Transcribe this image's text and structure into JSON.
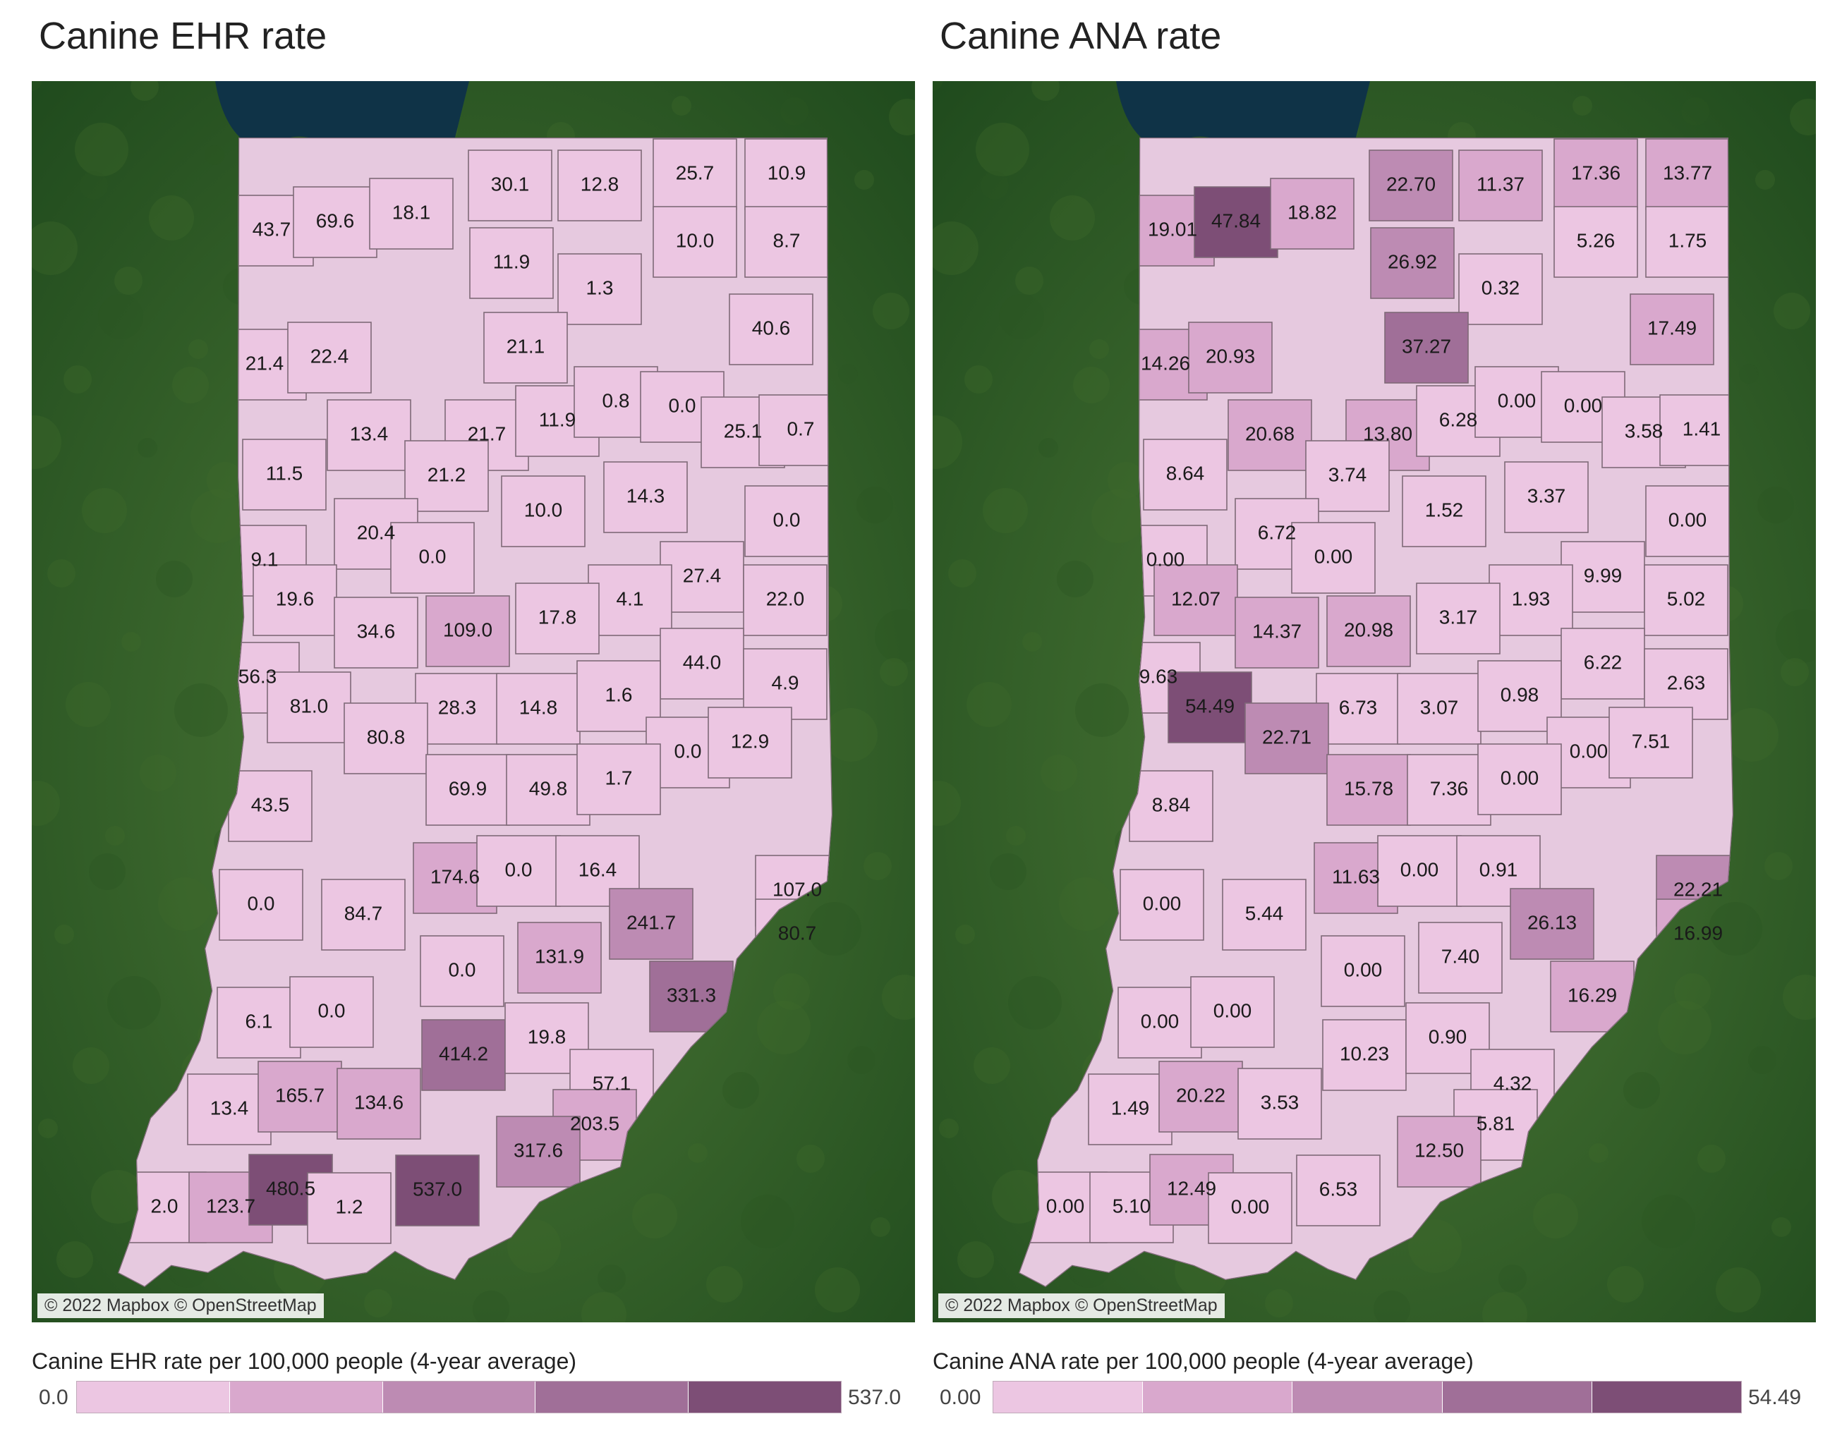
{
  "colors": {
    "scale": [
      "#ecc6e2",
      "#d9a8cd",
      "#bd8bb3",
      "#a06f98",
      "#7d4e76"
    ],
    "county_fill_default": "#e6c9df",
    "county_stroke": "#7f6a78",
    "land_dark": "#1f4a1d",
    "land_light": "#4e7a37",
    "lake": "#0f3347"
  },
  "panels": [
    {
      "title": "Canine EHR rate",
      "attribution": "© 2022 Mapbox © OpenStreetMap",
      "legend": {
        "title": "Canine EHR rate per 100,000 people (4-year average)",
        "min": "0.0",
        "max": "537.0",
        "min_value": 0,
        "max_value": 537
      },
      "labels": [
        "43.7",
        "69.6",
        "18.1",
        "30.1",
        "12.8",
        "25.7",
        "10.9",
        "11.9",
        "10.0",
        "8.7",
        "1.3",
        "21.4",
        "22.4",
        "21.1",
        "40.6",
        "13.4",
        "21.7",
        "11.9",
        "0.8",
        "0.0",
        "25.1",
        "0.7",
        "11.5",
        "21.2",
        "10.0",
        "14.3",
        "0.0",
        "20.4",
        "9.1",
        "0.0",
        "27.4",
        "19.6",
        "4.1",
        "22.0",
        "34.6",
        "109.0",
        "17.8",
        "44.0",
        "56.3",
        "81.0",
        "28.3",
        "14.8",
        "1.6",
        "4.9",
        "80.8",
        "0.0",
        "12.9",
        "69.9",
        "49.8",
        "1.7",
        "43.5",
        "174.6",
        "0.0",
        "16.4",
        "107.0",
        "0.0",
        "84.7",
        "241.7",
        "80.7",
        "131.9",
        "0.0",
        "331.3",
        "6.1",
        "0.0",
        "414.2",
        "19.8",
        "57.1",
        "13.4",
        "165.7",
        "134.6",
        "203.5",
        "317.6",
        "2.0",
        "123.7",
        "480.5",
        "1.2",
        "537.0"
      ],
      "values": [
        43.7,
        69.6,
        18.1,
        30.1,
        12.8,
        25.7,
        10.9,
        11.9,
        10.0,
        8.7,
        1.3,
        21.4,
        22.4,
        21.1,
        40.6,
        13.4,
        21.7,
        11.9,
        0.8,
        0.0,
        25.1,
        0.7,
        11.5,
        21.2,
        10.0,
        14.3,
        0.0,
        20.4,
        9.1,
        0.0,
        27.4,
        19.6,
        4.1,
        22.0,
        34.6,
        109.0,
        17.8,
        44.0,
        56.3,
        81.0,
        28.3,
        14.8,
        1.6,
        4.9,
        80.8,
        0.0,
        12.9,
        69.9,
        49.8,
        1.7,
        43.5,
        174.6,
        0.0,
        16.4,
        107.0,
        0.0,
        84.7,
        241.7,
        80.7,
        131.9,
        0.0,
        331.3,
        6.1,
        0.0,
        414.2,
        19.8,
        57.1,
        13.4,
        165.7,
        134.6,
        203.5,
        317.6,
        2.0,
        123.7,
        480.5,
        1.2,
        537.0
      ]
    },
    {
      "title": "Canine ANA rate",
      "attribution": "© 2022 Mapbox © OpenStreetMap",
      "legend": {
        "title": "Canine ANA rate per 100,000 people (4-year average)",
        "min": "0.00",
        "max": "54.49",
        "min_value": 0,
        "max_value": 54.49
      },
      "labels": [
        "19.01",
        "47.84",
        "18.82",
        "22.70",
        "11.37",
        "17.36",
        "13.77",
        "26.92",
        "5.26",
        "1.75",
        "0.32",
        "14.26",
        "20.93",
        "37.27",
        "17.49",
        "20.68",
        "13.80",
        "6.28",
        "0.00",
        "0.00",
        "3.58",
        "1.41",
        "8.64",
        "3.74",
        "1.52",
        "3.37",
        "0.00",
        "6.72",
        "0.00",
        "0.00",
        "9.99",
        "12.07",
        "1.93",
        "5.02",
        "14.37",
        "20.98",
        "3.17",
        "6.22",
        "9.63",
        "54.49",
        "6.73",
        "3.07",
        "0.98",
        "2.63",
        "22.71",
        "0.00",
        "7.51",
        "15.78",
        "7.36",
        "0.00",
        "8.84",
        "11.63",
        "0.00",
        "0.91",
        "22.21",
        "0.00",
        "5.44",
        "26.13",
        "16.99",
        "7.40",
        "0.00",
        "16.29",
        "0.00",
        "0.00",
        "10.23",
        "0.90",
        "4.32",
        "1.49",
        "20.22",
        "3.53",
        "5.81",
        "12.50",
        "0.00",
        "5.10",
        "12.49",
        "0.00",
        "6.53"
      ],
      "values": [
        19.01,
        47.84,
        18.82,
        22.7,
        11.37,
        17.36,
        13.77,
        26.92,
        5.26,
        1.75,
        0.32,
        14.26,
        20.93,
        37.27,
        17.49,
        20.68,
        13.8,
        6.28,
        0.0,
        0.0,
        3.58,
        1.41,
        8.64,
        3.74,
        1.52,
        3.37,
        0.0,
        6.72,
        0.0,
        0.0,
        9.99,
        12.07,
        1.93,
        5.02,
        14.37,
        20.98,
        3.17,
        6.22,
        9.63,
        54.49,
        6.73,
        3.07,
        0.98,
        2.63,
        22.71,
        0.0,
        7.51,
        15.78,
        7.36,
        0.0,
        8.84,
        11.63,
        0.0,
        0.91,
        22.21,
        0.0,
        5.44,
        26.13,
        16.99,
        7.4,
        0.0,
        16.29,
        0.0,
        0.0,
        10.23,
        0.9,
        4.32,
        1.49,
        20.22,
        3.53,
        5.81,
        12.5,
        0.0,
        5.1,
        12.49,
        0.0,
        6.53
      ]
    }
  ]
}
